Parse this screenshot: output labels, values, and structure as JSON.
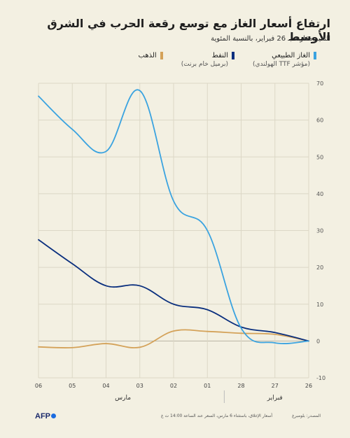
{
  "title": "ارتفاع أسعار الغاز مع توسع رقعة الحرب في الشرق الأوسط",
  "subtitle": "التغير مقارنة بـ 26 فبراير، بالنسبة المئوية",
  "legend": [
    {
      "label": "الغاز الطبيعي",
      "note": "(مؤشر TTF الهولندي)",
      "color": "#3aa3e0"
    },
    {
      "label": "النفط",
      "note": "(برميل خام برنت)",
      "color": "#0a2f7e"
    },
    {
      "label": "الذهب",
      "note": "",
      "color": "#d4a259"
    }
  ],
  "footer": {
    "brand": "AFP",
    "note": "أسعار الإغلاق، باستثناء 6 مارس، السعر عند الساعة 14:00 ت غ",
    "source": "المصدر: بلومبرغ"
  },
  "chart_data": {
    "type": "line",
    "x": [
      "26",
      "27",
      "28",
      "01",
      "02",
      "03",
      "04",
      "05",
      "06"
    ],
    "month_labels": [
      {
        "label": "فبراير",
        "span": [
          "26",
          "28"
        ]
      },
      {
        "label": "مارس",
        "span": [
          "01",
          "06"
        ]
      }
    ],
    "x_direction": "right-to-left",
    "ylim": [
      -10,
      70
    ],
    "yticks": [
      -10,
      0,
      10,
      20,
      30,
      40,
      50,
      60,
      70
    ],
    "grid": true,
    "series": [
      {
        "name": "الغاز الطبيعي",
        "color": "#3aa3e0",
        "values": [
          0,
          -0.5,
          3.5,
          30,
          38,
          68,
          51.5,
          57.5,
          66.5
        ]
      },
      {
        "name": "النفط",
        "color": "#0a2f7e",
        "values": [
          0,
          2.3,
          3.8,
          8.5,
          10,
          15,
          15,
          21,
          27.5
        ]
      },
      {
        "name": "الذهب",
        "color": "#d4a259",
        "values": [
          0,
          1.8,
          2.1,
          2.6,
          2.7,
          -1.7,
          -0.7,
          -1.8,
          -1.6
        ]
      }
    ]
  }
}
